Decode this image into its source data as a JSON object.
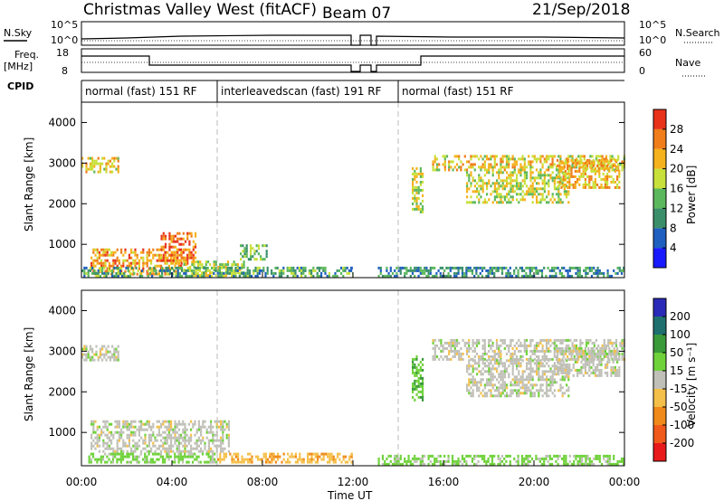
{
  "header": {
    "site": "Christmas Valley West (fitACF)",
    "beam": "Beam 07",
    "date": "21/Sep/2018"
  },
  "top_panels": {
    "nsky_label": "N.Sky",
    "nsearch_label": "N.Search",
    "freq_label_1": "Freq.",
    "freq_label_2": "[MHz]",
    "nave_label": "Nave",
    "cpid_label": "CPID",
    "noise_ticks": {
      "high": "10^5",
      "low": "10^0"
    },
    "freq_ticks": {
      "high": "18",
      "low": "8"
    },
    "nave_ticks": {
      "high": "60",
      "low": "0"
    }
  },
  "cpid_segments": [
    {
      "label": "normal (fast) 151 RF",
      "start_h": 0,
      "end_h": 6
    },
    {
      "label": "interleavedscan (fast) 191 RF",
      "start_h": 6,
      "end_h": 14
    },
    {
      "label": "normal (fast) 151 RF",
      "start_h": 14,
      "end_h": 24
    }
  ],
  "colorbars": {
    "power": {
      "title": "Power [dB]",
      "ticks": [
        "4",
        "8",
        "12",
        "16",
        "20",
        "24",
        "28"
      ],
      "colors": [
        "#1a1aff",
        "#1e5fbf",
        "#3a8f6a",
        "#5cb85c",
        "#c8e03a",
        "#f5b21c",
        "#f07d1a",
        "#e8321a"
      ]
    },
    "velocity": {
      "title": "Velocity [m s⁻¹]",
      "ticks": [
        "200",
        "100",
        "50",
        "15",
        "-15",
        "-50",
        "-100",
        "-200"
      ],
      "colors": [
        "#2a2ab8",
        "#1f6f6f",
        "#3a9a3a",
        "#6fd23a",
        "#c0c0b8",
        "#f5c04a",
        "#f08a1a",
        "#f05a1a",
        "#e81a1a"
      ]
    }
  },
  "chart_data": {
    "type": "heatmap",
    "title": "Christmas Valley West (fitACF) Beam 07 21/Sep/2018",
    "xlabel": "Time UT",
    "ylabel": "Slant Range [km]",
    "x_ticks": [
      "00:00",
      "04:00",
      "08:00",
      "12:00",
      "16:00",
      "20:00",
      "00:00"
    ],
    "xlim_hours": [
      0,
      24
    ],
    "y_ticks": [
      "1000",
      "2000",
      "3000",
      "4000"
    ],
    "ylim_km": [
      180,
      4500
    ],
    "gap_hours": [
      [
        12.0,
        12.4
      ],
      [
        12.85,
        13.1
      ]
    ],
    "dashed_marks_hours": [
      6,
      14
    ],
    "power_regions": [
      {
        "t0": 0.0,
        "t1": 1.6,
        "r0": 2750,
        "r1": 3150,
        "level": 20
      },
      {
        "t0": 0.4,
        "t1": 4.5,
        "r0": 250,
        "r1": 900,
        "level": 24
      },
      {
        "t0": 3.5,
        "t1": 5.0,
        "r0": 500,
        "r1": 1300,
        "level": 26
      },
      {
        "t0": 4.5,
        "t1": 7.2,
        "r0": 250,
        "r1": 600,
        "level": 18
      },
      {
        "t0": 7.0,
        "t1": 8.2,
        "r0": 600,
        "r1": 1000,
        "level": 14
      },
      {
        "t0": 0.0,
        "t1": 12.0,
        "r0": 220,
        "r1": 450,
        "level": 12
      },
      {
        "t0": 13.1,
        "t1": 24.0,
        "r0": 220,
        "r1": 450,
        "level": 10
      },
      {
        "t0": 14.6,
        "t1": 15.1,
        "r0": 1800,
        "r1": 2900,
        "level": 18
      },
      {
        "t0": 15.5,
        "t1": 24.0,
        "r0": 2800,
        "r1": 3200,
        "level": 20
      },
      {
        "t0": 17.0,
        "t1": 21.5,
        "r0": 2000,
        "r1": 2800,
        "level": 18
      },
      {
        "t0": 21.0,
        "t1": 23.8,
        "r0": 2400,
        "r1": 3100,
        "level": 22
      }
    ],
    "velocity_regions": [
      {
        "t0": 0.0,
        "t1": 1.6,
        "r0": 2750,
        "r1": 3150,
        "v": 0
      },
      {
        "t0": 0.4,
        "t1": 6.5,
        "r0": 500,
        "r1": 1300,
        "v": 0
      },
      {
        "t0": 0.3,
        "t1": 6.0,
        "r0": 250,
        "r1": 500,
        "v": 25
      },
      {
        "t0": 6.0,
        "t1": 12.0,
        "r0": 250,
        "r1": 500,
        "v": -40
      },
      {
        "t0": 13.1,
        "t1": 24.0,
        "r0": 220,
        "r1": 450,
        "v": 25
      },
      {
        "t0": 14.6,
        "t1": 15.1,
        "r0": 1800,
        "r1": 2900,
        "v": 40
      },
      {
        "t0": 15.5,
        "t1": 24.0,
        "r0": 2800,
        "r1": 3300,
        "v": 0
      },
      {
        "t0": 17.0,
        "t1": 21.5,
        "r0": 1900,
        "r1": 2800,
        "v": 0
      },
      {
        "t0": 21.0,
        "t1": 23.8,
        "r0": 2400,
        "r1": 3100,
        "v": 0
      }
    ]
  }
}
